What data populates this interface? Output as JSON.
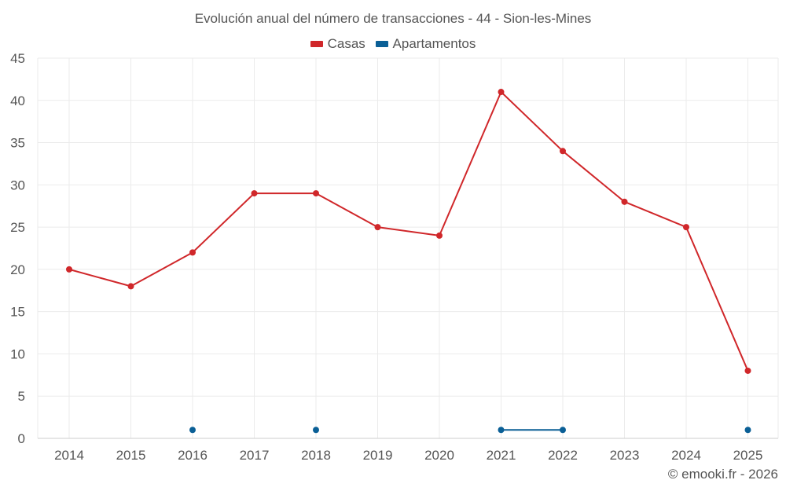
{
  "chart_data": {
    "type": "line",
    "title": "Evolución anual del número de transacciones - 44 - Sion-les-Mines",
    "categories": [
      "2014",
      "2015",
      "2016",
      "2017",
      "2018",
      "2019",
      "2020",
      "2021",
      "2022",
      "2023",
      "2024",
      "2025"
    ],
    "series": [
      {
        "name": "Casas",
        "color": "#d0272a",
        "values": [
          20,
          18,
          22,
          29,
          29,
          25,
          24,
          41,
          34,
          28,
          25,
          8
        ]
      },
      {
        "name": "Apartamentos",
        "color": "#0a5f96",
        "values": [
          null,
          null,
          1,
          null,
          1,
          null,
          null,
          1,
          1,
          null,
          null,
          1
        ]
      }
    ],
    "ylim": [
      0,
      45
    ],
    "yticks": [
      0,
      5,
      10,
      15,
      20,
      25,
      30,
      35,
      40,
      45
    ],
    "xlabel": "",
    "ylabel": "",
    "grid": true,
    "legend": "top-center"
  },
  "credit": "© emooki.fr - 2026"
}
